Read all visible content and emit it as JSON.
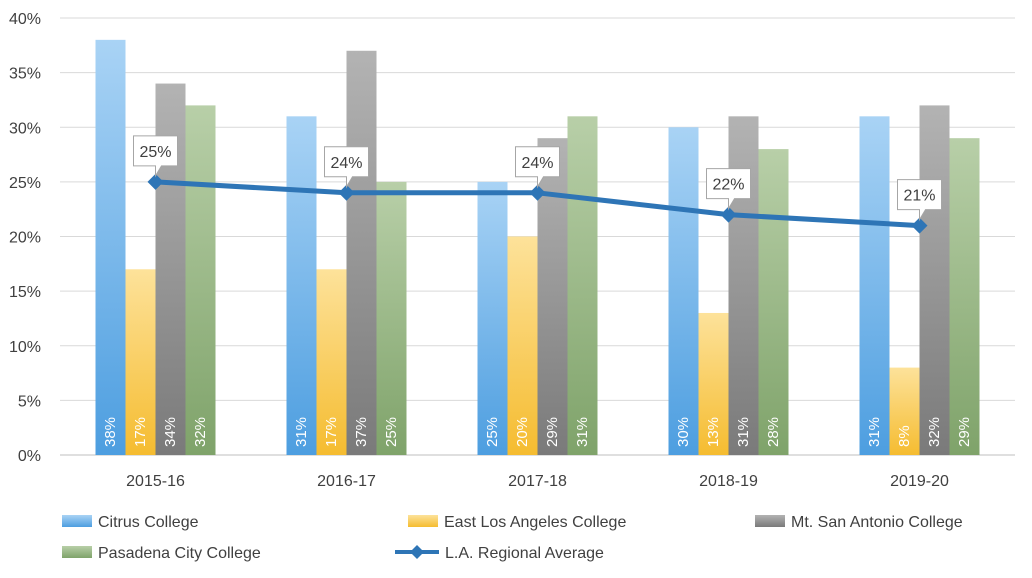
{
  "chart_data": {
    "type": "bar",
    "title": "",
    "xlabel": "",
    "ylabel": "",
    "ylim": [
      0,
      40
    ],
    "yticks": [
      0,
      5,
      10,
      15,
      20,
      25,
      30,
      35,
      40
    ],
    "ytick_labels": [
      "0%",
      "5%",
      "10%",
      "15%",
      "20%",
      "25%",
      "30%",
      "35%",
      "40%"
    ],
    "categories": [
      "2015-16",
      "2016-17",
      "2017-18",
      "2018-19",
      "2019-20"
    ],
    "grid": "horizontal",
    "legend_position": "bottom",
    "series": [
      {
        "name": "Citrus College",
        "color": "#5aaae6",
        "values": [
          38,
          31,
          25,
          30,
          31
        ],
        "labels": [
          "38%",
          "31%",
          "25%",
          "30%",
          "31%"
        ]
      },
      {
        "name": "East Los Angeles College",
        "color": "#f7c444",
        "values": [
          17,
          17,
          20,
          13,
          8
        ],
        "labels": [
          "17%",
          "17%",
          "20%",
          "13%",
          "8%"
        ]
      },
      {
        "name": "Mt. San Antonio College",
        "color": "#8c8c8c",
        "values": [
          34,
          37,
          29,
          31,
          32
        ],
        "labels": [
          "34%",
          "37%",
          "29%",
          "31%",
          "32%"
        ]
      },
      {
        "name": "Pasadena City College",
        "color": "#8fb07a",
        "values": [
          32,
          25,
          31,
          28,
          29
        ],
        "labels": [
          "32%",
          "25%",
          "31%",
          "28%",
          "29%"
        ]
      }
    ],
    "line_series": {
      "name": "L.A. Regional Average",
      "color": "#2e75b6",
      "values": [
        25,
        24,
        24,
        22,
        21
      ],
      "labels": [
        "25%",
        "24%",
        "24%",
        "22%",
        "21%"
      ]
    }
  }
}
